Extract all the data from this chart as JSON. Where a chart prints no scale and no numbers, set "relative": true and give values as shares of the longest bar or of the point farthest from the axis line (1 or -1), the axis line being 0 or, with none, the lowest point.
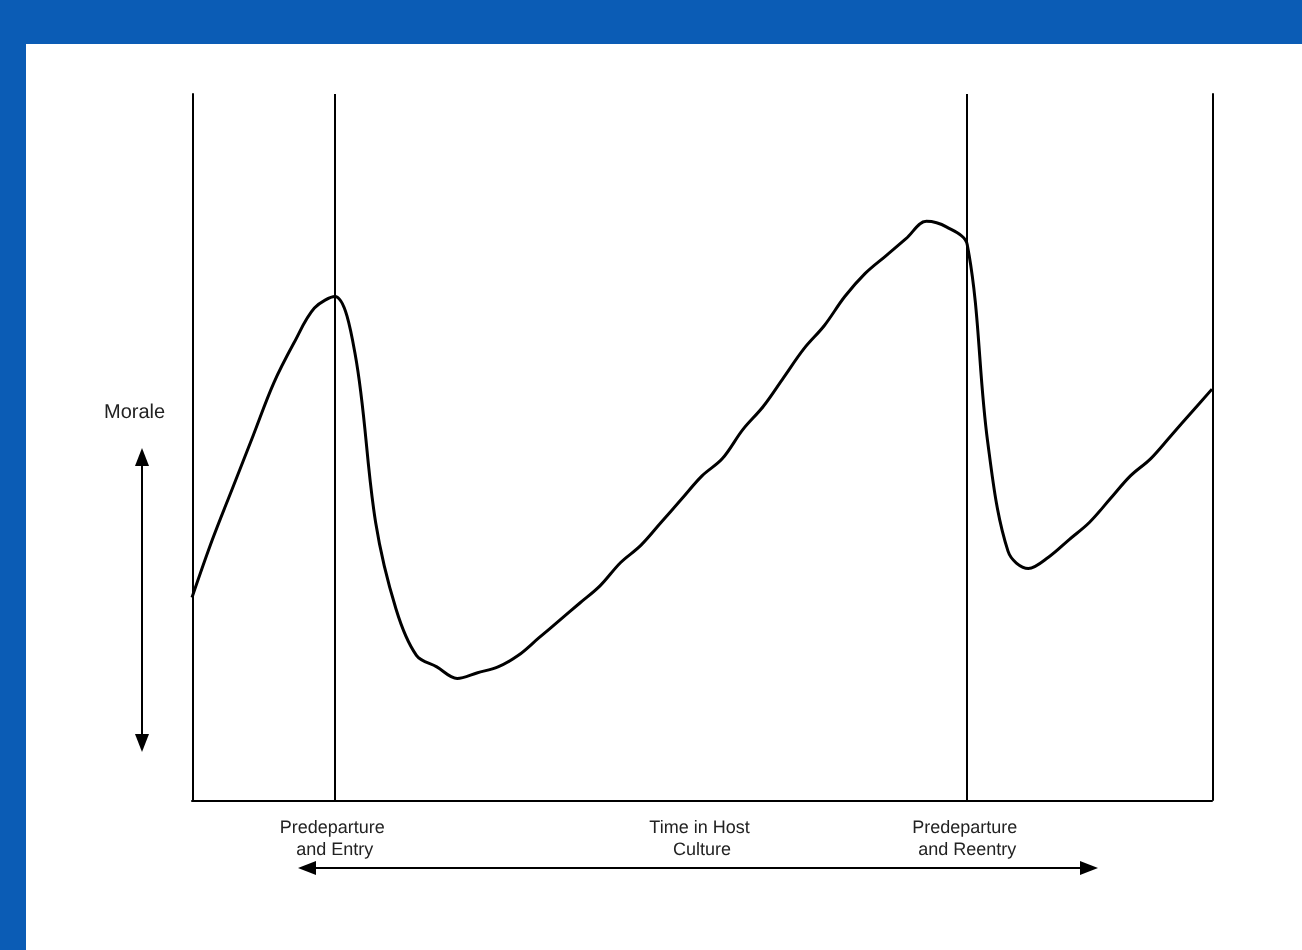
{
  "chart_data": {
    "type": "line",
    "relative": true,
    "ylabel": "Morale",
    "marker": "none",
    "line_style": "solid",
    "grid": false,
    "categories": [
      null,
      null,
      null,
      null,
      null,
      null,
      null,
      "Predeparture and Entry",
      null,
      null,
      null,
      null,
      null,
      null,
      null,
      null,
      null,
      null,
      null,
      null,
      null,
      null,
      null,
      null,
      null,
      "Time in Host Culture",
      null,
      null,
      null,
      null,
      null,
      null,
      null,
      null,
      null,
      null,
      null,
      null,
      "Predeparture and Reentry",
      null,
      null,
      null,
      null,
      null,
      null,
      null,
      null,
      null,
      null,
      null,
      null
    ],
    "ref_lines": [
      {
        "axis": "x",
        "value": "Predeparture and Entry",
        "color": "#000000"
      },
      {
        "axis": "x",
        "value": "Predeparture and Reentry",
        "color": "#000000"
      }
    ],
    "series": [
      {
        "color": "#000000",
        "values": [
          0.35,
          0.45,
          0.54,
          0.63,
          0.72,
          0.79,
          0.85,
          0.87,
          0.77,
          0.48,
          0.33,
          0.25,
          0.23,
          0.21,
          0.22,
          0.23,
          0.25,
          0.28,
          0.31,
          0.34,
          0.37,
          0.41,
          0.44,
          0.48,
          0.52,
          0.56,
          0.59,
          0.64,
          0.68,
          0.73,
          0.78,
          0.82,
          0.87,
          0.91,
          0.94,
          0.97,
          1.0,
          0.99,
          0.96,
          0.62,
          0.43,
          0.4,
          0.42,
          0.45,
          0.48,
          0.52,
          0.56,
          0.59,
          0.63,
          0.67,
          0.71
        ]
      }
    ]
  }
}
